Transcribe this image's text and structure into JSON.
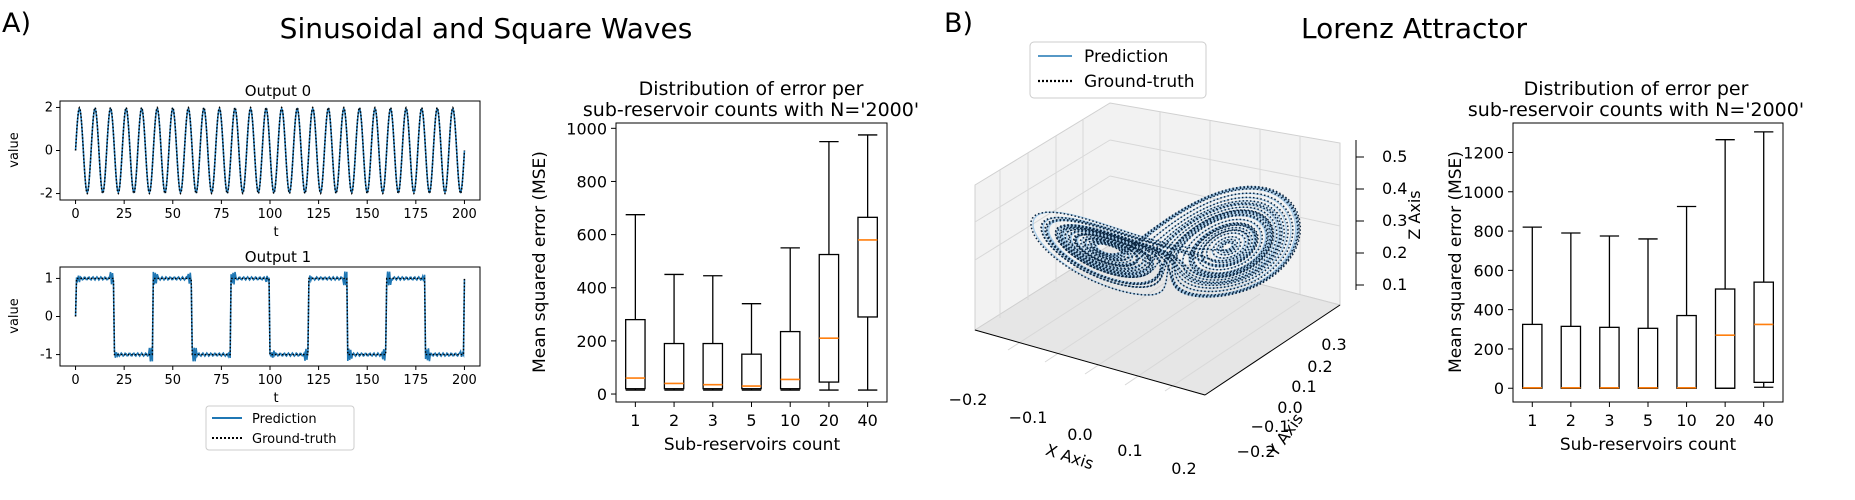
{
  "panels": {
    "a": {
      "letter": "A)",
      "title": "Sinusoidal and Square Waves"
    },
    "b": {
      "letter": "B)",
      "title": "Lorenz Attractor"
    }
  },
  "colors": {
    "prediction": "#1f77b4",
    "ground_truth": "#000000",
    "median": "#ff7f0e",
    "pane": "#ebebeb"
  },
  "chart_data": [
    {
      "id": "output0",
      "type": "line",
      "title": "Output 0",
      "xlabel": "t",
      "ylabel": "value",
      "xlim": [
        -8,
        208
      ],
      "ylim": [
        -2.3,
        2.3
      ],
      "xticks": [
        0,
        25,
        50,
        75,
        100,
        125,
        150,
        175,
        200
      ],
      "yticks": [
        -2,
        0,
        2
      ],
      "signal": {
        "kind": "sine",
        "amplitude": 2.0,
        "period": 8,
        "t_start": 0,
        "t_end": 200
      },
      "series": [
        {
          "name": "Prediction",
          "style": "solid"
        },
        {
          "name": "Ground-truth",
          "style": "dotted"
        }
      ]
    },
    {
      "id": "output1",
      "type": "line",
      "title": "Output 1",
      "xlabel": "t",
      "ylabel": "value",
      "xlim": [
        -8,
        208
      ],
      "ylim": [
        -1.3,
        1.3
      ],
      "xticks": [
        0,
        25,
        50,
        75,
        100,
        125,
        150,
        175,
        200
      ],
      "yticks": [
        -1,
        0,
        1
      ],
      "signal": {
        "kind": "square",
        "amplitude": 1.0,
        "period": 40,
        "t_start": 0,
        "t_end": 200
      },
      "series": [
        {
          "name": "Prediction",
          "style": "solid"
        },
        {
          "name": "Ground-truth",
          "style": "dotted"
        }
      ],
      "legend": {
        "placement": "bottom-center",
        "entries": [
          "Prediction",
          "Ground-truth"
        ]
      }
    },
    {
      "id": "boxA",
      "type": "box",
      "title_lines": [
        "Distribution of error per",
        "sub-reservoir counts with N='2000'"
      ],
      "xlabel": "Sub-reservoirs count",
      "ylabel": "Mean squared error (MSE)",
      "categories": [
        "1",
        "2",
        "3",
        "5",
        "10",
        "20",
        "40"
      ],
      "ylim": [
        -30,
        1020
      ],
      "yticks": [
        0,
        200,
        400,
        600,
        800,
        1000
      ],
      "boxes": [
        {
          "whislo": 15,
          "q1": 20,
          "med": 60,
          "q3": 280,
          "whishi": 675
        },
        {
          "whislo": 15,
          "q1": 20,
          "med": 40,
          "q3": 190,
          "whishi": 450
        },
        {
          "whislo": 15,
          "q1": 20,
          "med": 35,
          "q3": 190,
          "whishi": 445
        },
        {
          "whislo": 15,
          "q1": 20,
          "med": 30,
          "q3": 150,
          "whishi": 340
        },
        {
          "whislo": 15,
          "q1": 20,
          "med": 55,
          "q3": 235,
          "whishi": 550
        },
        {
          "whislo": 15,
          "q1": 45,
          "med": 210,
          "q3": 525,
          "whishi": 950
        },
        {
          "whislo": 15,
          "q1": 290,
          "med": 580,
          "q3": 665,
          "whishi": 975
        }
      ]
    },
    {
      "id": "lorenz",
      "type": "scatter",
      "subtype": "3d-line",
      "xlabel": "X Axis",
      "ylabel": "Y Axis",
      "zlabel": "Z Axis",
      "xticks": [
        "−0.2",
        "−0.1",
        "0.0",
        "0.1",
        "0.2"
      ],
      "yticks": [
        "−0.2",
        "−0.1",
        "0.0",
        "0.1",
        "0.2",
        "0.3"
      ],
      "zticks": [
        "0.1",
        "0.2",
        "0.3",
        "0.4",
        "0.5"
      ],
      "series": [
        {
          "name": "Prediction",
          "style": "solid"
        },
        {
          "name": "Ground-truth",
          "style": "dotted"
        }
      ],
      "legend": {
        "placement": "top-left",
        "entries": [
          "Prediction",
          "Ground-truth"
        ]
      }
    },
    {
      "id": "boxB",
      "type": "box",
      "title_lines": [
        "Distribution of error per",
        "sub-reservoir counts with N='2000'"
      ],
      "xlabel": "Sub-reservoirs count",
      "ylabel": "Mean squared error (MSE)",
      "categories": [
        "1",
        "2",
        "3",
        "5",
        "10",
        "20",
        "40"
      ],
      "ylim": [
        -70,
        1350
      ],
      "yticks": [
        0,
        200,
        400,
        600,
        800,
        1000,
        1200
      ],
      "boxes": [
        {
          "whislo": 0,
          "q1": 0,
          "med": 2,
          "q3": 325,
          "whishi": 820
        },
        {
          "whislo": 0,
          "q1": 0,
          "med": 2,
          "q3": 315,
          "whishi": 790
        },
        {
          "whislo": 0,
          "q1": 0,
          "med": 2,
          "q3": 310,
          "whishi": 775
        },
        {
          "whislo": 0,
          "q1": 0,
          "med": 2,
          "q3": 305,
          "whishi": 760
        },
        {
          "whislo": 0,
          "q1": 0,
          "med": 2,
          "q3": 370,
          "whishi": 925
        },
        {
          "whislo": 0,
          "q1": 0,
          "med": 270,
          "q3": 505,
          "whishi": 1265
        },
        {
          "whislo": 5,
          "q1": 30,
          "med": 325,
          "q3": 540,
          "whishi": 1305
        }
      ]
    }
  ]
}
